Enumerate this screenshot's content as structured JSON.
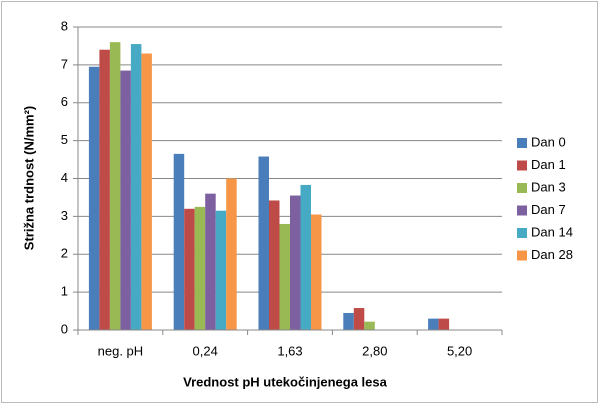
{
  "chart_data": {
    "type": "bar",
    "y_label": "Strižna trdnost (N/mm²)",
    "x_label": "Vrednost pH utekočinjenega lesa",
    "categories": [
      "neg. pH",
      "0,24",
      "1,63",
      "2,80",
      "5,20"
    ],
    "series": [
      {
        "name": "Dan 0",
        "color": "#4a7ebb",
        "values": [
          6.95,
          4.65,
          4.58,
          0.45,
          0.3
        ]
      },
      {
        "name": "Dan 1",
        "color": "#be4b48",
        "values": [
          7.4,
          3.2,
          3.42,
          0.58,
          0.3
        ]
      },
      {
        "name": "Dan 3",
        "color": "#98b954",
        "values": [
          7.6,
          3.25,
          2.8,
          0.22,
          null
        ]
      },
      {
        "name": "Dan 7",
        "color": "#7d60a0",
        "values": [
          6.85,
          3.6,
          3.55,
          null,
          null
        ]
      },
      {
        "name": "Dan 14",
        "color": "#46aac5",
        "values": [
          7.55,
          3.15,
          3.83,
          null,
          null
        ]
      },
      {
        "name": "Dan 28",
        "color": "#f79646",
        "values": [
          7.3,
          4.0,
          3.05,
          null,
          null
        ]
      }
    ],
    "ylim": [
      0,
      8
    ],
    "yticks": [
      0,
      1,
      2,
      3,
      4,
      5,
      6,
      7,
      8
    ],
    "grid": true,
    "legend": "right"
  }
}
